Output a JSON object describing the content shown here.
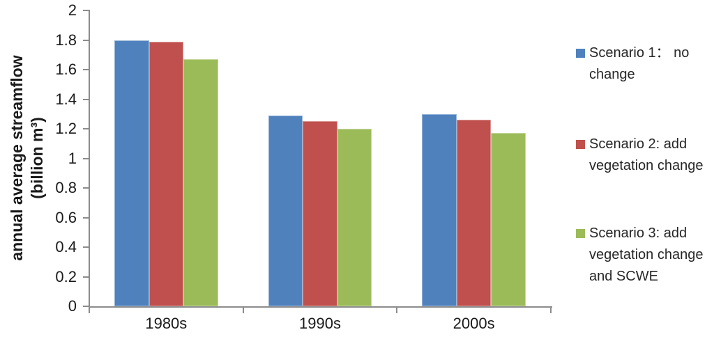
{
  "chart_data": {
    "type": "bar",
    "title": "",
    "categories": [
      "1980s",
      "1990s",
      "2000s"
    ],
    "series": [
      {
        "name": "Scenario 1： no change",
        "color": "#4F81BD",
        "border_color": "#95B3D7",
        "values": [
          1.8,
          1.29,
          1.3
        ]
      },
      {
        "name": "Scenario 2: add vegetation change",
        "color": "#C0504D",
        "border_color": "#D99694",
        "values": [
          1.79,
          1.25,
          1.26
        ]
      },
      {
        "name": "Scenario 3: add vegetation change and SCWE",
        "color": "#9BBB59",
        "border_color": "#C3D69B",
        "values": [
          1.67,
          1.2,
          1.17
        ]
      }
    ],
    "xlabel": "",
    "ylabel": "annual average streamflow (billion m³)",
    "ylabel_lines": {
      "line1": "annual average streamflow",
      "line2": "(billion m³)"
    },
    "ylim": [
      0,
      2
    ],
    "ytick_step": 0.2,
    "yticks": [
      "0",
      "0.2",
      "0.4",
      "0.6",
      "0.8",
      "1",
      "1.2",
      "1.4",
      "1.6",
      "1.8",
      "2"
    ],
    "grid": false,
    "legend_position": "right"
  },
  "legend": {
    "items": [
      {
        "color": "#4F81BD",
        "lines": [
          "Scenario 1：  no",
          "change"
        ]
      },
      {
        "color": "#C0504D",
        "lines": [
          "Scenario 2: add",
          "vegetation change"
        ]
      },
      {
        "color": "#9BBB59",
        "lines": [
          "Scenario 3: add",
          "vegetation change",
          "and SCWE"
        ]
      }
    ]
  },
  "colors": {
    "axis": "#8C8C8C",
    "text": "#1a1a1a",
    "background": "#ffffff"
  }
}
